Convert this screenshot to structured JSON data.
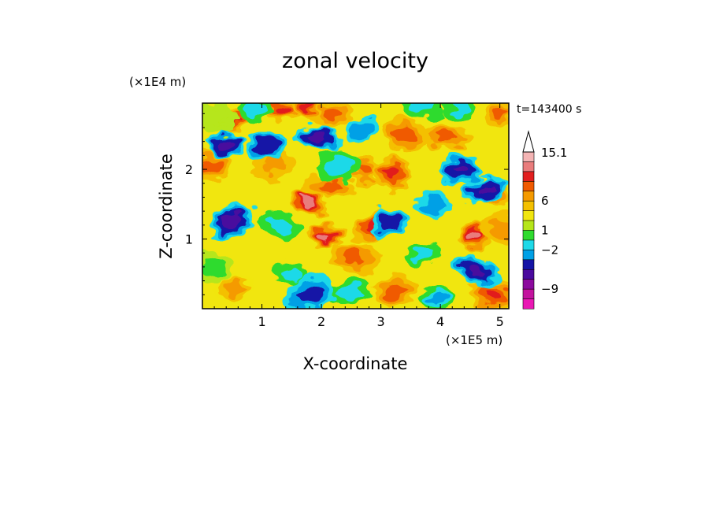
{
  "chart_data": {
    "type": "heatmap",
    "title": "zonal velocity",
    "xlabel": "X-coordinate",
    "ylabel": "Z-coordinate",
    "x_unit": "(×1E5 m)",
    "y_unit": "(×1E4 m)",
    "time_label": "t=143400 s",
    "xlim": [
      0,
      5.15
    ],
    "ylim": [
      0,
      2.95
    ],
    "x_ticks": [
      "1",
      "2",
      "3",
      "4",
      "5"
    ],
    "y_ticks": [
      "1",
      "2"
    ],
    "colorbar": {
      "labels": [
        "15.1",
        "6",
        "1",
        "−2",
        "−9"
      ],
      "colors": [
        "#f4b4b4",
        "#e97c7c",
        "#e21f1f",
        "#f05a00",
        "#f59a00",
        "#f4c000",
        "#f1e60f",
        "#b6e61a",
        "#2fdb2f",
        "#1ed9e8",
        "#00a0e6",
        "#1414a6",
        "#4a0a9e",
        "#8c0a9e",
        "#c3139e",
        "#ea18b4"
      ],
      "top_arrow": true
    },
    "regions": [
      {
        "x": 0.5,
        "z": 2.7,
        "v": 8
      },
      {
        "x": 1.35,
        "z": 2.85,
        "v": 7
      },
      {
        "x": 2.2,
        "z": 2.8,
        "v": 5
      },
      {
        "x": 3.4,
        "z": 2.5,
        "v": 6
      },
      {
        "x": 4.1,
        "z": 2.45,
        "v": 5
      },
      {
        "x": 5.0,
        "z": 2.8,
        "v": 6
      },
      {
        "x": 0.15,
        "z": 2.05,
        "v": 6
      },
      {
        "x": 1.2,
        "z": 2.1,
        "v": 3
      },
      {
        "x": 1.75,
        "z": 1.55,
        "v": 9
      },
      {
        "x": 2.15,
        "z": 1.75,
        "v": 6
      },
      {
        "x": 2.75,
        "z": 2.0,
        "v": 5
      },
      {
        "x": 3.2,
        "z": 1.95,
        "v": 7
      },
      {
        "x": 2.05,
        "z": 1.05,
        "v": 10
      },
      {
        "x": 2.9,
        "z": 1.2,
        "v": 7
      },
      {
        "x": 2.55,
        "z": 0.75,
        "v": 5
      },
      {
        "x": 4.55,
        "z": 1.05,
        "v": 9
      },
      {
        "x": 4.85,
        "z": 1.65,
        "v": 6
      },
      {
        "x": 0.55,
        "z": 0.3,
        "v": 4
      },
      {
        "x": 3.25,
        "z": 0.25,
        "v": 6
      },
      {
        "x": 4.9,
        "z": 0.2,
        "v": 7
      },
      {
        "x": 1.8,
        "z": 2.9,
        "v": 8
      },
      {
        "x": 0.4,
        "z": 2.35,
        "v": -10
      },
      {
        "x": 1.1,
        "z": 2.35,
        "v": -8
      },
      {
        "x": 0.5,
        "z": 1.25,
        "v": -11
      },
      {
        "x": 1.95,
        "z": 2.45,
        "v": -9
      },
      {
        "x": 2.65,
        "z": 2.55,
        "v": -5
      },
      {
        "x": 3.15,
        "z": 1.25,
        "v": -8
      },
      {
        "x": 4.35,
        "z": 2.0,
        "v": -9
      },
      {
        "x": 4.75,
        "z": 1.7,
        "v": -10
      },
      {
        "x": 4.6,
        "z": 0.55,
        "v": -10
      },
      {
        "x": 3.9,
        "z": 1.5,
        "v": -5
      },
      {
        "x": 0.2,
        "z": 0.6,
        "v": -1
      },
      {
        "x": 1.5,
        "z": 0.5,
        "v": -3
      },
      {
        "x": 2.45,
        "z": 0.25,
        "v": -2
      },
      {
        "x": 3.7,
        "z": 2.95,
        "v": -3
      },
      {
        "x": 4.35,
        "z": 2.9,
        "v": -2
      },
      {
        "x": 3.7,
        "z": 0.8,
        "v": -3
      },
      {
        "x": 1.3,
        "z": 1.2,
        "v": -2
      },
      {
        "x": 2.3,
        "z": 2.05,
        "v": -3
      },
      {
        "x": 1.8,
        "z": 0.2,
        "v": -6
      },
      {
        "x": 3.95,
        "z": 0.15,
        "v": -4
      },
      {
        "x": 0.9,
        "z": 2.85,
        "v": -2
      },
      {
        "x": 0.25,
        "z": 2.75,
        "v": 0
      },
      {
        "x": 5.05,
        "z": 1.15,
        "v": 3
      }
    ]
  }
}
